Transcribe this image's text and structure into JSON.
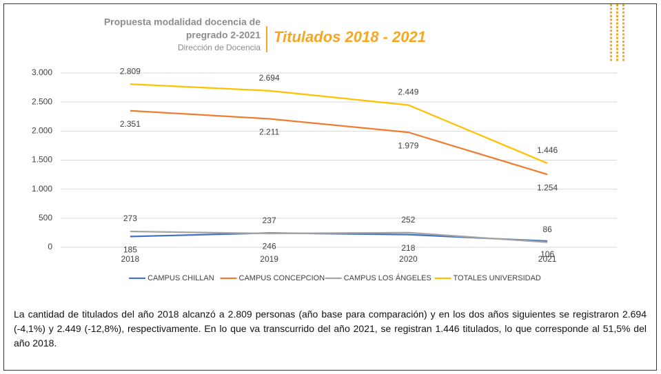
{
  "header": {
    "lines": [
      "Propuesta modalidad docencia de",
      "pregrado 2-2021"
    ],
    "subtitle": "Dirección de Docencia"
  },
  "chart_data": {
    "type": "line",
    "title": "Titulados 2018 - 2021",
    "categories": [
      "2018",
      "2019",
      "2020",
      "2021"
    ],
    "ylim": [
      0,
      3000
    ],
    "yticks": [
      0,
      500,
      {
        "value": 1000,
        "label": "1.000"
      },
      {
        "value": 1500,
        "label": "1.500"
      },
      {
        "value": 2000,
        "label": "2.000"
      },
      {
        "value": 2500,
        "label": "2.500"
      },
      {
        "value": 3000,
        "label": "3.000"
      }
    ],
    "grid": true,
    "legend": "bottom",
    "series": [
      {
        "name": "CAMPUS CHILLAN",
        "color": "#4472c4",
        "values": [
          185,
          246,
          218,
          106
        ],
        "value_labels": [
          "185",
          "246",
          "218",
          "106"
        ]
      },
      {
        "name": "CAMPUS CONCEPCION",
        "color": "#ed7d31",
        "values": [
          2351,
          2211,
          1979,
          1254
        ],
        "value_labels": [
          "2.351",
          "2.211",
          "1.979",
          "1.254"
        ]
      },
      {
        "name": "CAMPUS LOS ÁNGELES",
        "color": "#a5a5a5",
        "values": [
          273,
          237,
          252,
          86
        ],
        "value_labels": [
          "273",
          "237",
          "252",
          "86"
        ]
      },
      {
        "name": "TOTALES UNIVERSIDAD",
        "color": "#ffc000",
        "values": [
          2809,
          2694,
          2449,
          1446
        ],
        "value_labels": [
          "2.809",
          "2.694",
          "2.449",
          "1.446"
        ]
      }
    ]
  },
  "paragraph": "La cantidad de titulados del año 2018 alcanzó a 2.809 personas (año base para comparación) y en los dos años siguientes se registraron 2.694 (-4,1%) y 2.449 (-12,8%), respectivamente. En lo que va transcurrido del año 2021, se registran 1.446 titulados, lo que corresponde al 51,5% del año 2018."
}
